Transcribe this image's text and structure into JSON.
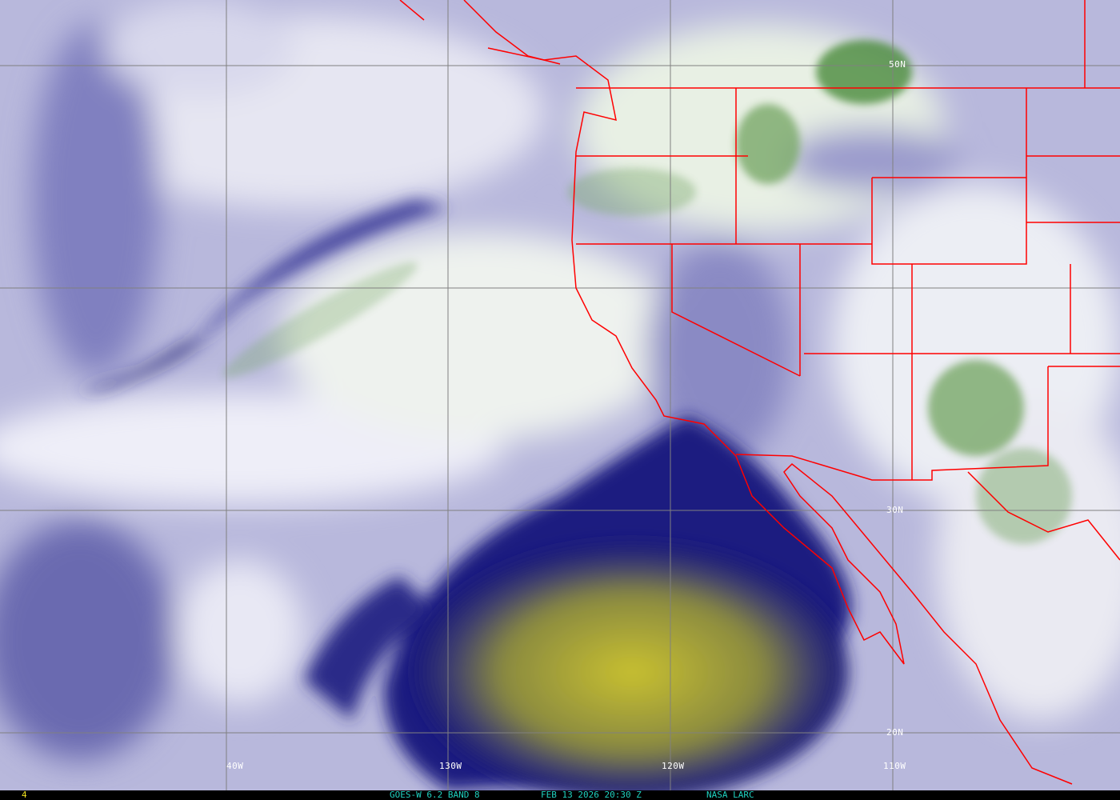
{
  "image": {
    "satellite": "GOES-W",
    "caption": "GOES-W 6.2 BAND 8",
    "datetime": "FEB 13 2026 20:30 Z",
    "credit": "NASA LARC",
    "frame_number": "4",
    "caption_color": "#20d0c0",
    "frame_number_color": "#f0e020",
    "border_color": "#ff0000",
    "grid_color": "#808080"
  },
  "latitude_labels": [
    "50N",
    "30N",
    "20N"
  ],
  "longitude_labels": [
    "40W",
    "130W",
    "120W",
    "110W"
  ],
  "palette": {
    "dry": "#f0f0f8",
    "mid": "#9a9acc",
    "very_dry": "#1a1a70",
    "extreme_dry": "#b0b030",
    "moist": "#70a060"
  }
}
